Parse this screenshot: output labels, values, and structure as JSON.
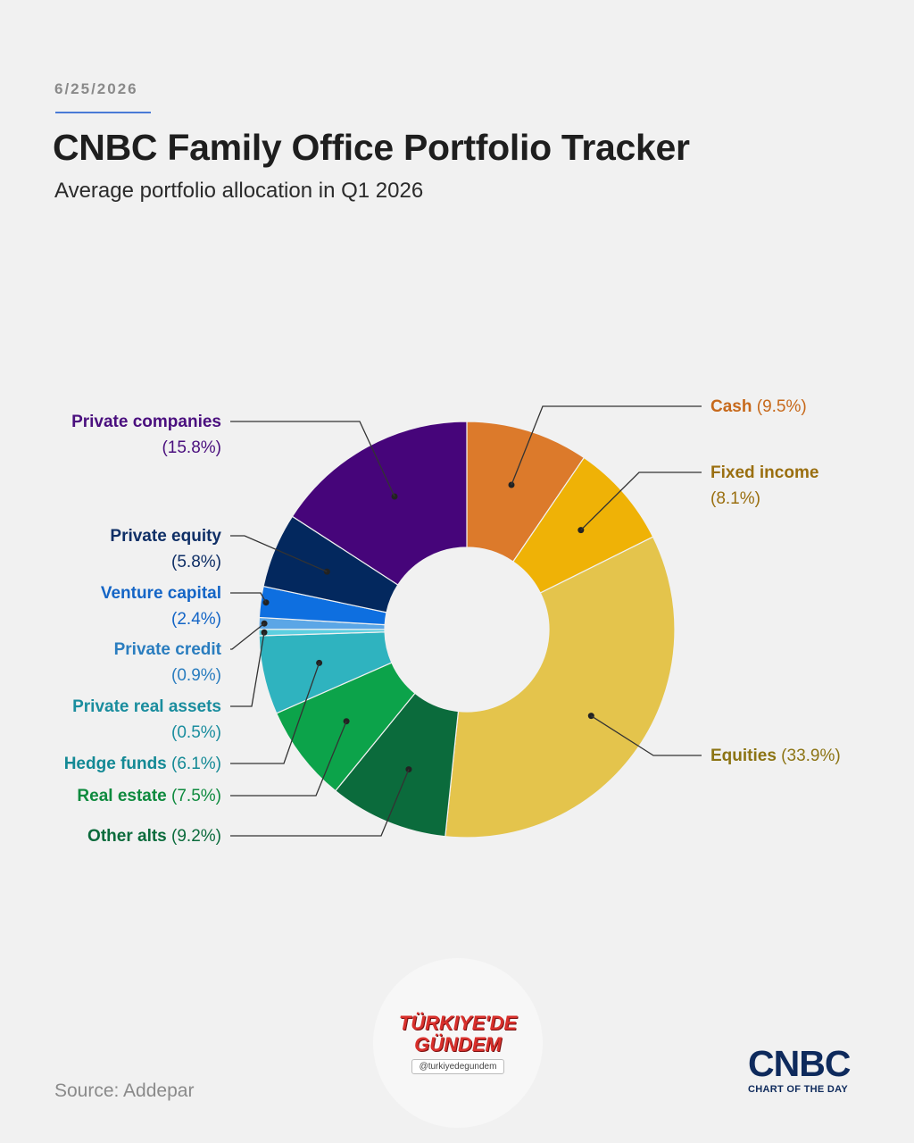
{
  "header": {
    "date": "6/25/2026",
    "title": "CNBC Family Office Portfolio Tracker",
    "subtitle": "Average portfolio allocation in Q1 2026"
  },
  "footer": {
    "source": "Source: Addepar",
    "logo_word": "CNBC",
    "logo_tag": "CHART OF THE DAY"
  },
  "watermark": {
    "line1": "TÜRKIYE'DE",
    "line2": "GÜNDEM",
    "handle": "@turkiyedegundem"
  },
  "chart_data": {
    "type": "pie",
    "donut": true,
    "start_angle_deg": 0,
    "direction": "clockwise",
    "slices": [
      {
        "label": "Cash",
        "value_text": "(9.5%)",
        "value": 9.5,
        "color": "#dc7a2b",
        "text_color": "#c7691b"
      },
      {
        "label": "Fixed income",
        "value_text": "(8.1%)",
        "value": 8.1,
        "color": "#efb206",
        "text_color": "#9a6f10"
      },
      {
        "label": "Equities",
        "value_text": "(33.9%)",
        "value": 33.9,
        "color": "#e4c44c",
        "text_color": "#8c7414"
      },
      {
        "label": "Other alts",
        "value_text": "(9.2%)",
        "value": 9.2,
        "color": "#0b6b3c",
        "text_color": "#0b6b3c"
      },
      {
        "label": "Real estate",
        "value_text": "(7.5%)",
        "value": 7.5,
        "color": "#0ca34a",
        "text_color": "#0e8a3e"
      },
      {
        "label": "Hedge funds",
        "value_text": "(6.1%)",
        "value": 6.1,
        "color": "#2fb3bf",
        "text_color": "#138995"
      },
      {
        "label": "Private real assets",
        "value_text": "(0.5%)",
        "value": 0.5,
        "color": "#5ccfe0",
        "text_color": "#1a8d9e"
      },
      {
        "label": "Private credit",
        "value_text": "(0.9%)",
        "value": 0.9,
        "color": "#5ba6e6",
        "text_color": "#2a7dbf"
      },
      {
        "label": "Venture capital",
        "value_text": "(2.4%)",
        "value": 2.4,
        "color": "#0e6fe0",
        "text_color": "#1465c6"
      },
      {
        "label": "Private equity",
        "value_text": "(5.8%)",
        "value": 5.8,
        "color": "#03285e",
        "text_color": "#0f2f66"
      },
      {
        "label": "Private companies",
        "value_text": "(15.8%)",
        "value": 15.8,
        "color": "#46057a",
        "text_color": "#4a0f7e"
      }
    ]
  }
}
